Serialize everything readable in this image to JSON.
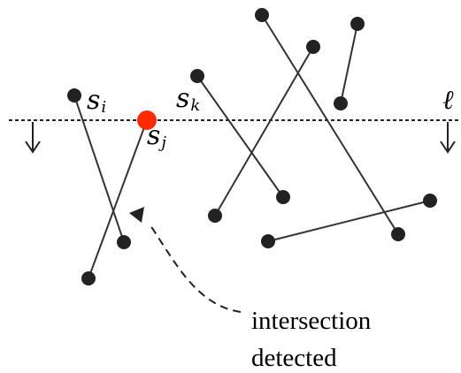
{
  "labels": {
    "s_i": {
      "base": "s",
      "sub": "i"
    },
    "s_j": {
      "base": "s",
      "sub": "j"
    },
    "s_k": {
      "base": "s",
      "sub": "k"
    },
    "sweep_line": "ℓ"
  },
  "annotation": {
    "line1": "intersection",
    "line2": "detected"
  },
  "colors": {
    "stroke": "#222222",
    "point": "#222222",
    "highlight": "#ff2a00"
  }
}
